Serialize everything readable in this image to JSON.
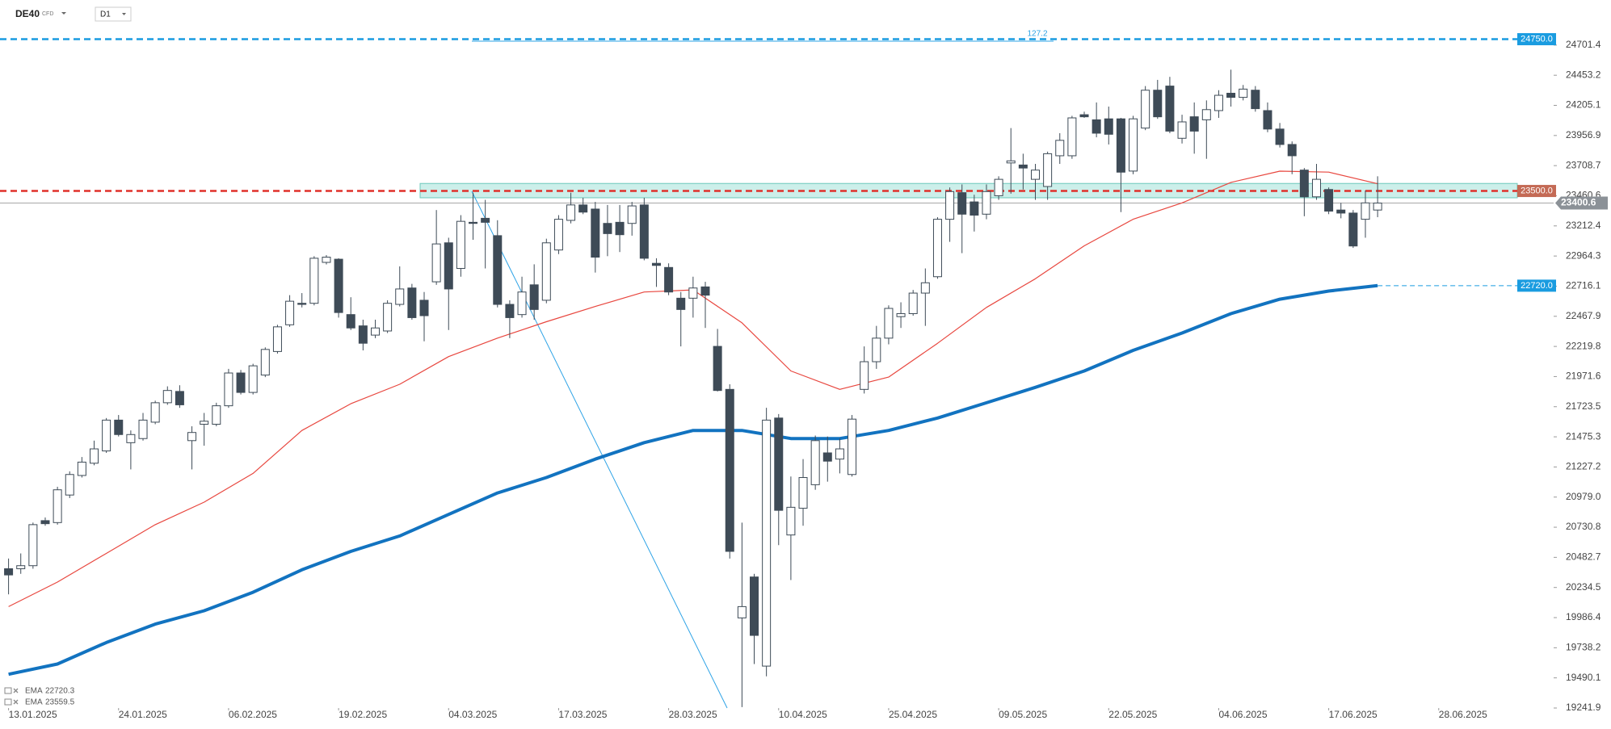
{
  "header": {
    "symbol": "DE40",
    "instrument_type": "CFD",
    "timeframe": "D1"
  },
  "chart_data": {
    "type": "candlestick",
    "open": [
      20389,
      20389,
      20414,
      20785,
      20769,
      20996,
      21157,
      21258,
      21359,
      21613,
      21427,
      21461,
      21596,
      21756,
      21849,
      21444,
      21579,
      21579,
      21731,
      22001,
      21841,
      21984,
      22178,
      22398,
      22575,
      22575,
      22912,
      22938,
      22482,
      22389,
      22313,
      22347,
      22566,
      22701,
      22600,
      22752,
      23073,
      22862,
      23242,
      23275,
      23132,
      22566,
      22482,
      22727,
      22600,
      23014,
      23258,
      23385,
      23351,
      23233,
      23242,
      23233,
      23385,
      22904,
      22870,
      22617,
      22617,
      22710,
      22220,
      21866,
      19984,
      20321,
      19587,
      21630,
      20667,
      20887,
      21081,
      21343,
      21292,
      21165,
      21866,
      22094,
      22288,
      22465,
      22490,
      22659,
      22794,
      23267,
      23486,
      23410,
      23309,
      23461,
      23731,
      23714,
      23596,
      23537,
      23790,
      23790,
      24128,
      24086,
      24094,
      24094,
      23664,
      24018,
      24330,
      24364,
      23934,
      24111,
      24086,
      24162,
      24305,
      24271,
      24330,
      24162,
      24010,
      23883,
      23672,
      23452,
      23512,
      23343,
      23318,
      23267,
      23343
    ],
    "high": [
      20473,
      20515,
      20769,
      20811,
      21064,
      21191,
      21309,
      21444,
      21630,
      21655,
      21528,
      21672,
      21773,
      21891,
      21900,
      21562,
      21672,
      21756,
      22035,
      22026,
      22077,
      22212,
      22398,
      22642,
      22659,
      22963,
      22972,
      22946,
      22625,
      22440,
      22440,
      22600,
      22879,
      22735,
      22668,
      23343,
      23115,
      23301,
      23486,
      23427,
      23259,
      22600,
      22794,
      22896,
      23107,
      23301,
      23486,
      23444,
      23410,
      23385,
      23385,
      23410,
      23444,
      22946,
      22904,
      22668,
      22794,
      22752,
      22364,
      21908,
      20769,
      20347,
      21714,
      21663,
      21148,
      21292,
      21486,
      21478,
      21461,
      21655,
      22220,
      22389,
      22558,
      22583,
      22685,
      22862,
      23284,
      23529,
      23554,
      23469,
      23554,
      23621,
      24018,
      23807,
      23723,
      23824,
      23976,
      24119,
      24153,
      24229,
      24195,
      24102,
      24119,
      24364,
      24415,
      24440,
      24128,
      24229,
      24246,
      24330,
      24499,
      24373,
      24364,
      24229,
      24060,
      23908,
      23689,
      23723,
      23529,
      23402,
      23343,
      23504,
      23621
    ],
    "low": [
      20178,
      20347,
      20389,
      20743,
      20752,
      20971,
      21140,
      21241,
      21343,
      21478,
      21207,
      21444,
      21579,
      21739,
      21714,
      21207,
      21402,
      21562,
      21714,
      21824,
      21824,
      21967,
      22161,
      22381,
      22541,
      22558,
      22895,
      22457,
      22355,
      22187,
      22288,
      22330,
      22549,
      22440,
      22262,
      22727,
      22355,
      22794,
      23098,
      22862,
      22541,
      22288,
      22457,
      22440,
      22575,
      22980,
      23233,
      23309,
      22828,
      22963,
      22997,
      23132,
      22929,
      22710,
      22642,
      22220,
      22457,
      22372,
      21849,
      20473,
      19249,
      19604,
      19503,
      20583,
      20296,
      20743,
      21039,
      21106,
      21174,
      21148,
      21832,
      22035,
      22237,
      22372,
      22473,
      22389,
      22777,
      23081,
      22988,
      23166,
      23267,
      23427,
      23478,
      23512,
      23427,
      23427,
      23723,
      23765,
      24102,
      23942,
      23883,
      23326,
      23638,
      24001,
      24094,
      23976,
      23891,
      23807,
      23765,
      24102,
      24195,
      24246,
      24153,
      23984,
      23858,
      23638,
      23292,
      23427,
      23309,
      23275,
      23031,
      23115,
      23284
    ],
    "close": [
      20338,
      20414,
      20752,
      20760,
      21039,
      21165,
      21267,
      21376,
      21613,
      21494,
      21494,
      21613,
      21756,
      21857,
      21739,
      21511,
      21604,
      21731,
      22001,
      21841,
      22060,
      22195,
      22381,
      22592,
      22566,
      22946,
      22955,
      22499,
      22372,
      22246,
      22372,
      22575,
      22693,
      22457,
      22473,
      23064,
      22693,
      23250,
      23233,
      23242,
      22566,
      22457,
      22668,
      22524,
      23073,
      23267,
      23385,
      23326,
      22955,
      23149,
      23140,
      23377,
      22946,
      22887,
      22668,
      22524,
      22701,
      22642,
      21857,
      20532,
      20077,
      19840,
      21613,
      20870,
      20895,
      21140,
      21444,
      21275,
      21376,
      21621,
      22094,
      22288,
      22533,
      22490,
      22659,
      22744,
      23267,
      23495,
      23309,
      23301,
      23495,
      23596,
      23748,
      23689,
      23672,
      23807,
      23917,
      24102,
      24111,
      23976,
      23967,
      23655,
      24094,
      24330,
      24111,
      23993,
      24069,
      23993,
      24170,
      24288,
      24271,
      24339,
      24178,
      24010,
      23883,
      23790,
      23452,
      23596,
      23334,
      23318,
      23047,
      23402,
      23400.6
    ],
    "colors": {
      "up": "#ffffff",
      "down": "#3e4b57",
      "outline": "#3e4b57"
    },
    "xlim": [
      -0.7,
      126.4
    ],
    "xticks": [
      {
        "value": 0,
        "label": "13.01.2025"
      },
      {
        "value": 9,
        "label": "24.01.2025"
      },
      {
        "value": 18,
        "label": "06.02.2025"
      },
      {
        "value": 27,
        "label": "19.02.2025"
      },
      {
        "value": 36,
        "label": "04.03.2025"
      },
      {
        "value": 45,
        "label": "17.03.2025"
      },
      {
        "value": 54,
        "label": "28.03.2025"
      },
      {
        "value": 63,
        "label": "10.04.2025"
      },
      {
        "value": 72,
        "label": "25.04.2025"
      },
      {
        "value": 81,
        "label": "09.05.2025"
      },
      {
        "value": 90,
        "label": "22.05.2025"
      },
      {
        "value": 99,
        "label": "04.06.2025"
      },
      {
        "value": 108,
        "label": "17.06.2025"
      },
      {
        "value": 117,
        "label": "28.06.2025"
      }
    ],
    "ylim": [
      19241.9,
      25072.8
    ],
    "yticks": [
      24701.4,
      24453.2,
      24205.1,
      23956.9,
      23708.7,
      23460.6,
      23212.4,
      22964.3,
      22716.1,
      22467.9,
      22219.8,
      21971.6,
      21723.5,
      21475.3,
      21227.2,
      {
        "value": 20979.0,
        "label": "20979.0"
      },
      20730.8,
      20482.7,
      20234.5,
      19986.4,
      19738.2,
      19490.1,
      19241.9
    ],
    "grid": false,
    "indicators": [
      {
        "name": "EMA",
        "color": "#1273c0",
        "width": 4,
        "x": [
          0,
          4,
          8,
          12,
          16,
          20,
          24,
          28,
          32,
          36,
          40,
          44,
          48,
          52,
          56,
          60,
          64,
          68,
          72,
          76,
          80,
          84,
          88,
          92,
          96,
          100,
          104,
          108,
          112
        ],
        "values": [
          19520,
          19604,
          19781,
          19933,
          20043,
          20195,
          20380,
          20532,
          20659,
          20836,
          21013,
          21140,
          21292,
          21427,
          21528,
          21528,
          21461,
          21461,
          21528,
          21630,
          21756,
          21883,
          22018,
          22187,
          22330,
          22490,
          22609,
          22676,
          22720.3
        ]
      },
      {
        "name": "EMA",
        "color": "#e8473f",
        "width": 1.2,
        "x": [
          0,
          4,
          8,
          12,
          16,
          20,
          24,
          28,
          32,
          36,
          40,
          44,
          48,
          52,
          56,
          60,
          64,
          68,
          72,
          76,
          80,
          84,
          88,
          92,
          96,
          100,
          104,
          108,
          112
        ],
        "values": [
          20077,
          20279,
          20515,
          20752,
          20937,
          21174,
          21528,
          21748,
          21908,
          22136,
          22288,
          22423,
          22549,
          22668,
          22685,
          22414,
          22018,
          21866,
          21967,
          22246,
          22541,
          22777,
          23048,
          23267,
          23402,
          23571,
          23663,
          23655,
          23559.5
        ]
      }
    ],
    "levels": [
      {
        "value": 24750.0,
        "label": "24750.0",
        "color": "#1a9ce0",
        "style": "dashed-full"
      },
      {
        "value": 23500.0,
        "label": "23500.0",
        "color": "#e0302a",
        "label_color": "#c46a55",
        "style": "dashed-full"
      },
      {
        "value": 22720.0,
        "label": "22720.0",
        "color": "#1a9ce0",
        "style": "dashed-right"
      }
    ],
    "zone": {
      "low": 23444,
      "high": 23562
    },
    "fib_label": "127.2"
  }
}
